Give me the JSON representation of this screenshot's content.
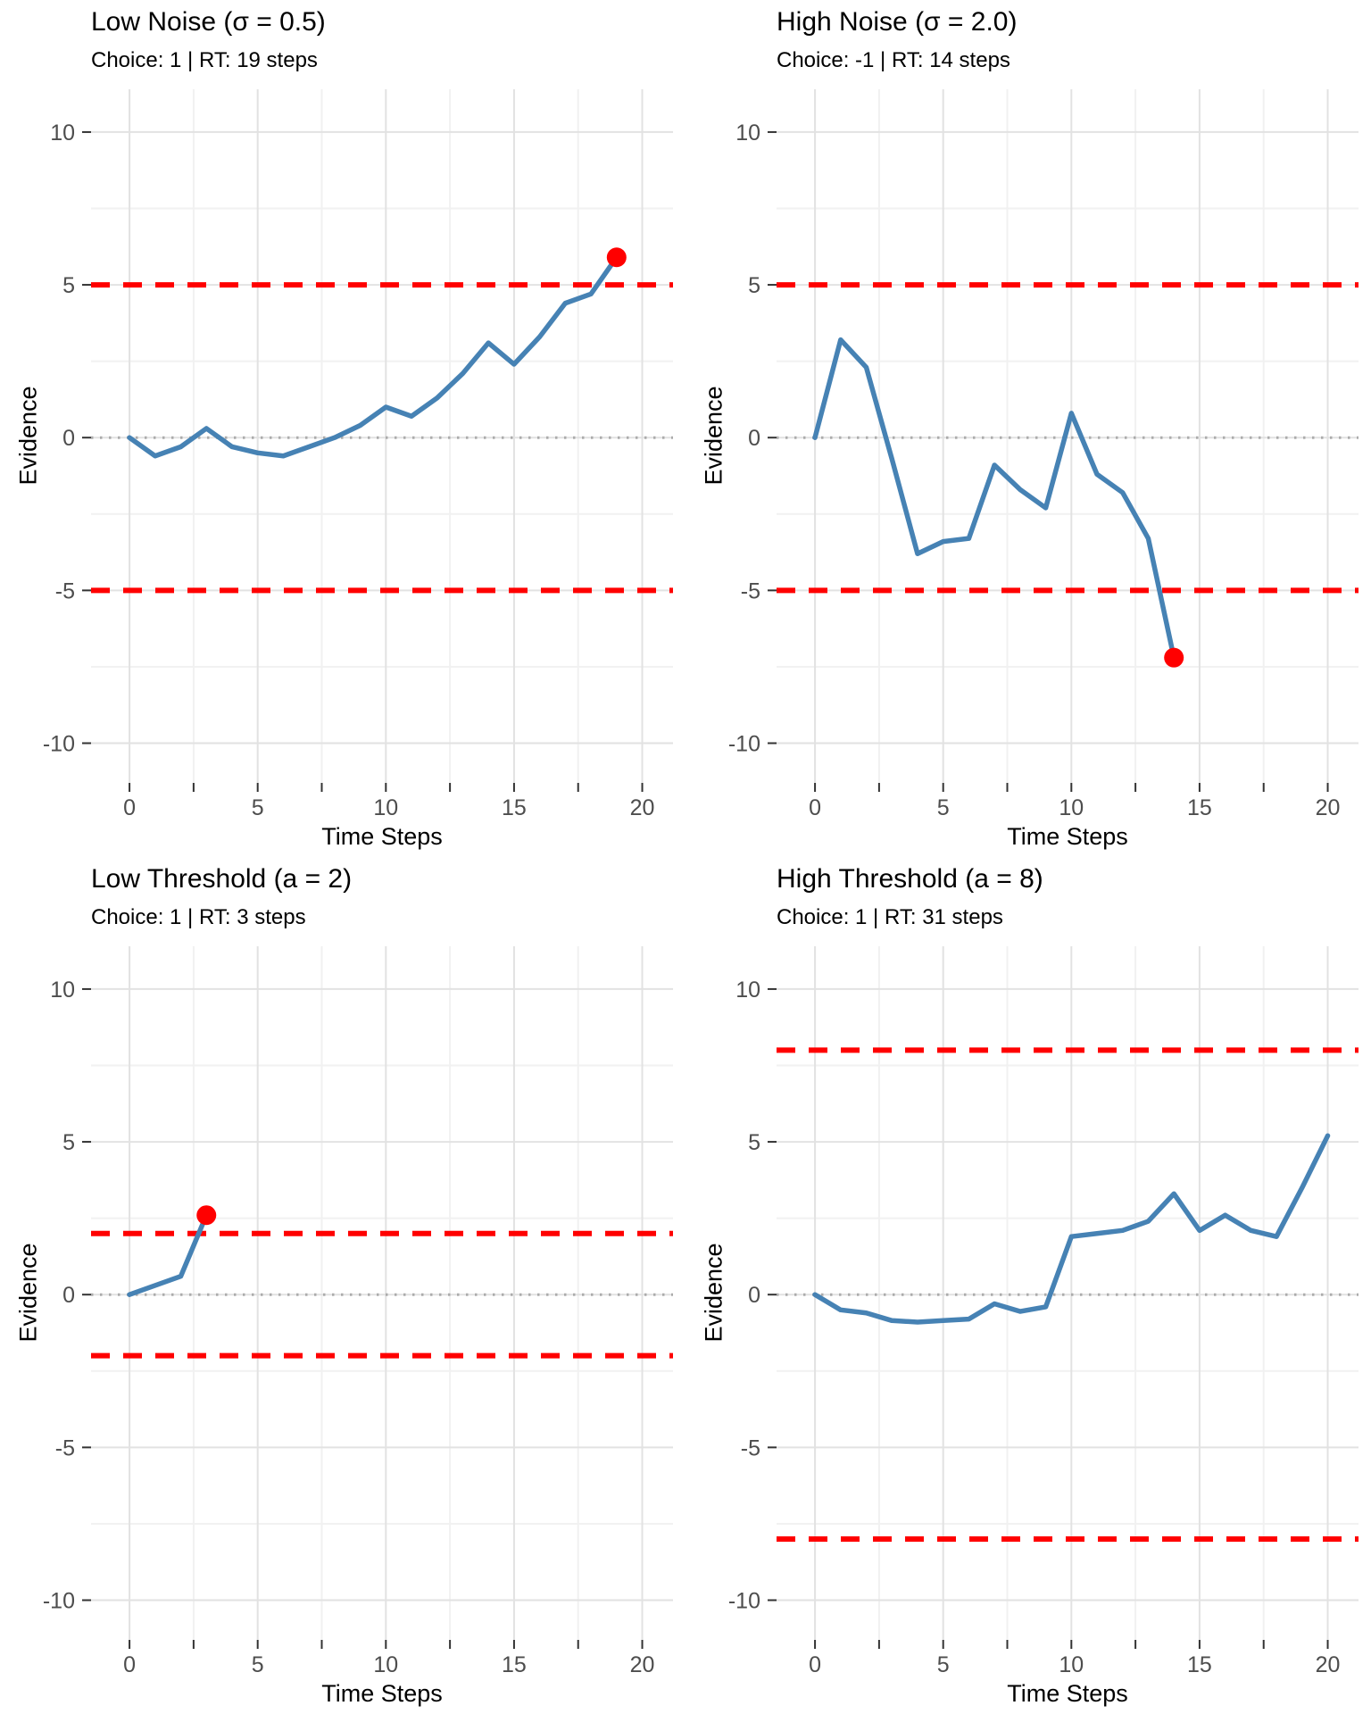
{
  "figure": {
    "background_color": "#ffffff",
    "grid_major_color": "#e2e2e2",
    "grid_minor_color": "#f1f1f1",
    "tick_label_color": "#4d4d4d",
    "tick_mark_color": "#333333"
  },
  "chart_data": [
    {
      "type": "line",
      "title": "Low Noise (σ = 0.5)",
      "subtitle": "Choice: 1 | RT: 19 steps",
      "xlabel": "Time Steps",
      "ylabel": "Evidence",
      "x_ticks": [
        0,
        5,
        10,
        15,
        20
      ],
      "y_ticks": [
        10,
        5,
        0,
        -5,
        -10
      ],
      "xlim": [
        -1.5,
        21.2
      ],
      "ylim": [
        -11.3,
        11.4
      ],
      "grid": true,
      "threshold": 5,
      "zero_line": 0,
      "line_color": "#4682B4",
      "threshold_color": "#FF0000",
      "decision_color": "#FF0000",
      "zero_line_color": "#ababab",
      "x": [
        0,
        1,
        2,
        3,
        4,
        5,
        6,
        7,
        8,
        9,
        10,
        11,
        12,
        13,
        14,
        15,
        16,
        17,
        18,
        19
      ],
      "evidence": [
        0,
        -0.6,
        -0.3,
        0.3,
        -0.3,
        -0.5,
        -0.6,
        -0.3,
        0.0,
        0.4,
        1.0,
        0.7,
        1.3,
        2.1,
        3.1,
        2.4,
        3.3,
        4.4,
        4.7,
        5.9
      ],
      "decision_point": {
        "t": 19,
        "evidence": 5.9
      }
    },
    {
      "type": "line",
      "title": "High Noise (σ = 2.0)",
      "subtitle": "Choice: -1 | RT: 14 steps",
      "xlabel": "Time Steps",
      "ylabel": "Evidence",
      "x_ticks": [
        0,
        5,
        10,
        15,
        20
      ],
      "y_ticks": [
        10,
        5,
        0,
        -5,
        -10
      ],
      "xlim": [
        -1.5,
        21.2
      ],
      "ylim": [
        -11.3,
        11.4
      ],
      "grid": true,
      "threshold": 5,
      "zero_line": 0,
      "line_color": "#4682B4",
      "threshold_color": "#FF0000",
      "decision_color": "#FF0000",
      "zero_line_color": "#ababab",
      "x": [
        0,
        1,
        2,
        3,
        4,
        5,
        6,
        7,
        8,
        9,
        10,
        11,
        12,
        13,
        14
      ],
      "evidence": [
        0,
        3.2,
        2.3,
        -0.7,
        -3.8,
        -3.4,
        -3.3,
        -0.9,
        -1.7,
        -2.3,
        0.8,
        -1.2,
        -1.8,
        -3.3,
        -7.2
      ],
      "decision_point": {
        "t": 14,
        "evidence": -7.2
      }
    },
    {
      "type": "line",
      "title": "Low Threshold (a = 2)",
      "subtitle": "Choice: 1 | RT: 3 steps",
      "xlabel": "Time Steps",
      "ylabel": "Evidence",
      "x_ticks": [
        0,
        5,
        10,
        15,
        20
      ],
      "y_ticks": [
        10,
        5,
        0,
        -5,
        -10
      ],
      "xlim": [
        -1.5,
        21.2
      ],
      "ylim": [
        -11.3,
        11.4
      ],
      "grid": true,
      "threshold": 2,
      "zero_line": 0,
      "line_color": "#4682B4",
      "threshold_color": "#FF0000",
      "decision_color": "#FF0000",
      "zero_line_color": "#ababab",
      "x": [
        0,
        1,
        2,
        3
      ],
      "evidence": [
        0,
        0.3,
        0.6,
        2.6
      ],
      "decision_point": {
        "t": 3,
        "evidence": 2.6
      }
    },
    {
      "type": "line",
      "title": "High Threshold (a = 8)",
      "subtitle": "Choice: 1 | RT: 31 steps",
      "xlabel": "Time Steps",
      "ylabel": "Evidence",
      "x_ticks": [
        0,
        5,
        10,
        15,
        20
      ],
      "y_ticks": [
        10,
        5,
        0,
        -5,
        -10
      ],
      "xlim": [
        -1.5,
        21.2
      ],
      "ylim": [
        -11.3,
        11.4
      ],
      "grid": true,
      "threshold": 8,
      "zero_line": 0,
      "line_color": "#4682B4",
      "threshold_color": "#FF0000",
      "decision_color": "#FF0000",
      "zero_line_color": "#ababab",
      "x": [
        0,
        1,
        2,
        3,
        4,
        5,
        6,
        7,
        8,
        9,
        10,
        11,
        12,
        13,
        14,
        15,
        16,
        17,
        18,
        19,
        20
      ],
      "evidence": [
        0,
        -0.5,
        -0.6,
        -0.85,
        -0.9,
        -0.85,
        -0.8,
        -0.3,
        -0.55,
        -0.4,
        1.9,
        2.0,
        2.1,
        2.4,
        3.3,
        2.1,
        2.6,
        2.1,
        1.9,
        3.5,
        5.2
      ],
      "decision_point": null
    }
  ]
}
